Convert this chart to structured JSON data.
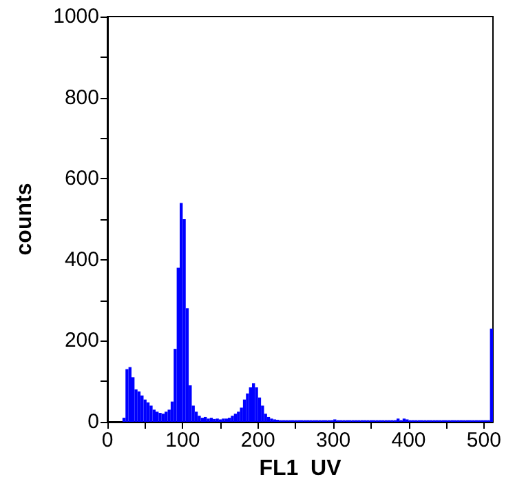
{
  "chart_data": {
    "type": "histogram",
    "xlabel": "FL1  UV",
    "ylabel": "counts",
    "color": "#0000ff",
    "bins": [
      0,
      4,
      8,
      12,
      16,
      20,
      24,
      28,
      32,
      36,
      40,
      44,
      48,
      52,
      56,
      60,
      64,
      68,
      72,
      76,
      80,
      84,
      88,
      92,
      96,
      100,
      104,
      108,
      112,
      116,
      120,
      124,
      128,
      132,
      136,
      140,
      144,
      148,
      152,
      156,
      160,
      164,
      168,
      172,
      176,
      180,
      184,
      188,
      192,
      196,
      200,
      204,
      208,
      212,
      216,
      220,
      224,
      228,
      232,
      236,
      240,
      244,
      248,
      252,
      256,
      260,
      264,
      268,
      272,
      276,
      280,
      284,
      288,
      292,
      296,
      300,
      304,
      308,
      312,
      316,
      320,
      324,
      328,
      332,
      336,
      340,
      344,
      348,
      352,
      356,
      360,
      364,
      368,
      372,
      376,
      380,
      384,
      388,
      392,
      396,
      400,
      404,
      408,
      412,
      416,
      420,
      424,
      428,
      432,
      436,
      440,
      444,
      448,
      452,
      456,
      460,
      464,
      468,
      472,
      476,
      480,
      484,
      488,
      492,
      496,
      500,
      504,
      508,
      512
    ],
    "values": [
      0,
      0,
      0,
      0,
      0,
      10,
      130,
      135,
      110,
      80,
      75,
      65,
      55,
      48,
      40,
      30,
      25,
      22,
      20,
      25,
      30,
      50,
      180,
      380,
      540,
      500,
      280,
      90,
      40,
      25,
      15,
      10,
      12,
      8,
      10,
      7,
      8,
      6,
      8,
      8,
      10,
      15,
      20,
      25,
      35,
      55,
      70,
      85,
      95,
      85,
      60,
      40,
      20,
      12,
      8,
      6,
      5,
      4,
      4,
      4,
      4,
      4,
      4,
      4,
      4,
      4,
      4,
      4,
      4,
      4,
      4,
      4,
      4,
      4,
      4,
      6,
      4,
      4,
      4,
      4,
      4,
      4,
      4,
      4,
      4,
      4,
      4,
      4,
      4,
      4,
      4,
      4,
      4,
      4,
      4,
      4,
      8,
      4,
      8,
      6,
      4,
      4,
      4,
      4,
      4,
      4,
      4,
      4,
      4,
      4,
      4,
      4,
      4,
      4,
      4,
      4,
      4,
      4,
      4,
      4,
      4,
      4,
      4,
      4,
      4,
      4,
      4,
      230
    ],
    "xlim": [
      0,
      512
    ],
    "ylim": [
      0,
      1000
    ],
    "xticks": [
      0,
      {
        "value": 50,
        "label": null
      },
      100,
      {
        "value": 150,
        "label": null
      },
      200,
      {
        "value": 250,
        "label": null
      },
      300,
      {
        "value": 350,
        "label": null
      },
      400,
      {
        "value": 450,
        "label": null
      },
      500
    ],
    "yticks": [
      0,
      {
        "value": 100,
        "label": null
      },
      200,
      {
        "value": 300,
        "label": null
      },
      400,
      {
        "value": 500,
        "label": null
      },
      600,
      {
        "value": 700,
        "label": null
      },
      800,
      {
        "value": 900,
        "label": null
      },
      1000
    ],
    "grid": false
  }
}
